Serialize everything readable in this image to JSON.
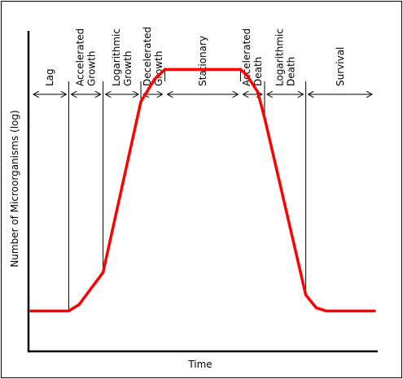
{
  "chart_data": {
    "type": "line",
    "title": "",
    "xlabel": "Time",
    "ylabel": "Number of Microorganisms (log)",
    "phases": [
      {
        "lines": [
          "Lag"
        ],
        "start": 0,
        "end": 11
      },
      {
        "lines": [
          "Accelerated",
          "Growth"
        ],
        "start": 11,
        "end": 21
      },
      {
        "lines": [
          "Logarithmic",
          "Growth"
        ],
        "start": 21,
        "end": 32
      },
      {
        "lines": [
          "Decelerated",
          "Growth"
        ],
        "start": 32,
        "end": 39
      },
      {
        "lines": [
          "Stationary"
        ],
        "start": 39,
        "end": 61
      },
      {
        "lines": [
          "Accelerated",
          "Death"
        ],
        "start": 61,
        "end": 68
      },
      {
        "lines": [
          "Logarithmic",
          "Death"
        ],
        "start": 68,
        "end": 80
      },
      {
        "lines": [
          "Survival"
        ],
        "start": 80,
        "end": 100
      }
    ],
    "boundaries": [
      11,
      21,
      32,
      39,
      61,
      68,
      80
    ],
    "series": [
      {
        "color": "#ff0000",
        "x": [
          0,
          11,
          14,
          21,
          32,
          36,
          39,
          61,
          63,
          66,
          68,
          80,
          83,
          86,
          100
        ],
        "y": [
          10,
          10,
          12,
          22,
          75,
          82,
          85,
          85,
          83,
          78,
          70,
          15,
          11,
          10,
          10
        ]
      }
    ],
    "xlim": [
      0,
      100
    ],
    "ylim": [
      0,
      100
    ],
    "grid": false,
    "legend": false
  }
}
